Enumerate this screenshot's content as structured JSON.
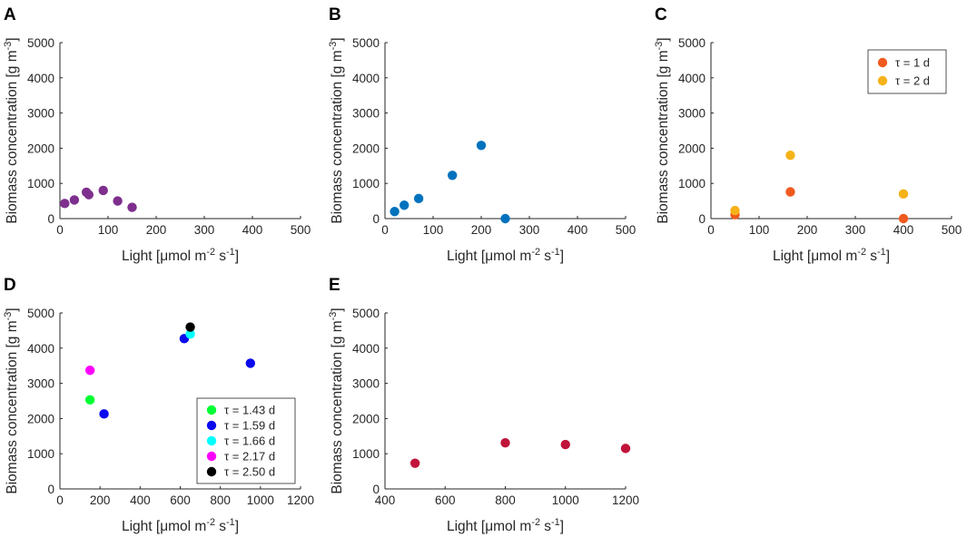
{
  "chart_data": [
    {
      "panel": "A",
      "type": "scatter",
      "xlabel": "Light [μmol m-2 s-1]",
      "ylabel": "Biomass concentration [g m-3]",
      "xlim": [
        0,
        500
      ],
      "ylim": [
        0,
        5000
      ],
      "xticks": [
        0,
        100,
        200,
        300,
        400,
        500
      ],
      "yticks": [
        0,
        1000,
        2000,
        3000,
        4000,
        5000
      ],
      "legend": null,
      "series": [
        {
          "name": "",
          "color": "#7e2f8e",
          "points": [
            [
              10,
              430
            ],
            [
              30,
              530
            ],
            [
              55,
              750
            ],
            [
              60,
              680
            ],
            [
              90,
              800
            ],
            [
              120,
              500
            ],
            [
              150,
              320
            ]
          ]
        }
      ]
    },
    {
      "panel": "B",
      "type": "scatter",
      "xlabel": "Light [μmol m-2 s-1]",
      "ylabel": "Biomass concentration [g m-3]",
      "xlim": [
        0,
        500
      ],
      "ylim": [
        0,
        5000
      ],
      "xticks": [
        0,
        100,
        200,
        300,
        400,
        500
      ],
      "yticks": [
        0,
        1000,
        2000,
        3000,
        4000,
        5000
      ],
      "legend": null,
      "series": [
        {
          "name": "",
          "color": "#0072bd",
          "points": [
            [
              20,
              200
            ],
            [
              40,
              380
            ],
            [
              70,
              570
            ],
            [
              140,
              1230
            ],
            [
              200,
              2080
            ],
            [
              250,
              0
            ]
          ]
        }
      ]
    },
    {
      "panel": "C",
      "type": "scatter",
      "xlabel": "Light [μmol m-2 s-1]",
      "ylabel": "Biomass concentration [g m-3]",
      "xlim": [
        0,
        500
      ],
      "ylim": [
        0,
        5000
      ],
      "xticks": [
        0,
        100,
        200,
        300,
        400,
        500
      ],
      "yticks": [
        0,
        1000,
        2000,
        3000,
        4000,
        5000
      ],
      "legend": "top-right",
      "series": [
        {
          "name": "τ = 1 d",
          "color": "#f05a1e",
          "points": [
            [
              50,
              110
            ],
            [
              165,
              760
            ],
            [
              400,
              0
            ]
          ]
        },
        {
          "name": "τ = 2 d",
          "color": "#f5b319",
          "points": [
            [
              50,
              230
            ],
            [
              165,
              1800
            ],
            [
              400,
              700
            ]
          ]
        }
      ]
    },
    {
      "panel": "D",
      "type": "scatter",
      "xlabel": "Light [μmol m-2 s-1]",
      "ylabel": "Biomass concentration [g m-3]",
      "xlim": [
        0,
        1200
      ],
      "ylim": [
        0,
        5000
      ],
      "xticks": [
        0,
        200,
        400,
        600,
        800,
        1000,
        1200
      ],
      "yticks": [
        0,
        1000,
        2000,
        3000,
        4000,
        5000
      ],
      "legend": "bottom-right",
      "series": [
        {
          "name": "τ = 1.43 d",
          "color": "#00ff33",
          "points": [
            [
              150,
              2530
            ]
          ]
        },
        {
          "name": "τ = 1.59 d",
          "color": "#0a0aee",
          "points": [
            [
              220,
              2130
            ],
            [
              620,
              4270
            ],
            [
              950,
              3570
            ]
          ]
        },
        {
          "name": "τ = 1.66 d",
          "color": "#00ffff",
          "points": [
            [
              650,
              4400
            ]
          ]
        },
        {
          "name": "τ = 2.17 d",
          "color": "#ff00ff",
          "points": [
            [
              150,
              3370
            ]
          ]
        },
        {
          "name": "τ = 2.50 d",
          "color": "#000000",
          "points": [
            [
              650,
              4600
            ]
          ]
        }
      ]
    },
    {
      "panel": "E",
      "type": "scatter",
      "xlabel": "Light [μmol m-2 s-1]",
      "ylabel": "Biomass concentration [g m-3]",
      "xlim": [
        400,
        1200
      ],
      "ylim": [
        0,
        5000
      ],
      "xticks": [
        400,
        600,
        800,
        1000,
        1200
      ],
      "yticks": [
        0,
        1000,
        2000,
        3000,
        4000,
        5000
      ],
      "legend": null,
      "series": [
        {
          "name": "",
          "color": "#c1143a",
          "points": [
            [
              500,
              730
            ],
            [
              800,
              1310
            ],
            [
              1000,
              1260
            ],
            [
              1200,
              1150
            ]
          ]
        }
      ]
    }
  ]
}
